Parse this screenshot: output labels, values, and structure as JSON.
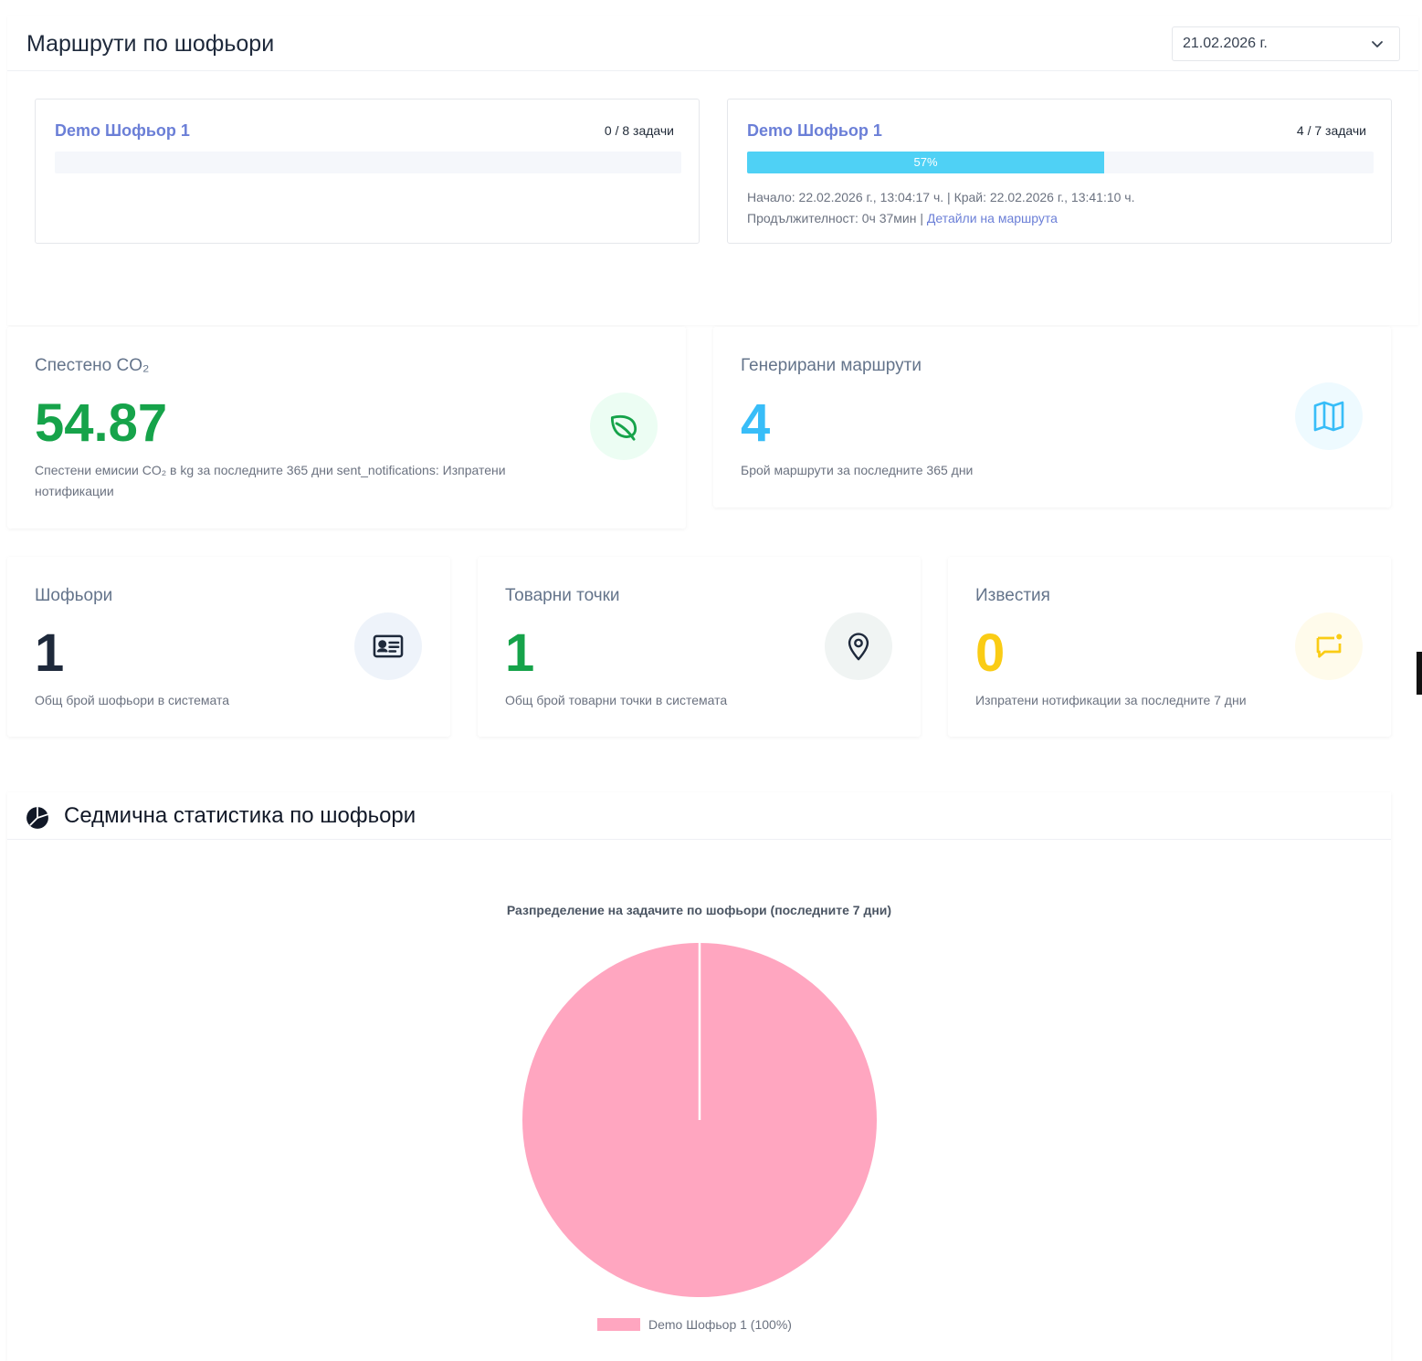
{
  "routes": {
    "title": "Маршрути по шофьори",
    "date_value": "21.02.2026 г.",
    "cards": [
      {
        "driver": "Demo Шофьор 1",
        "tasks": "0 / 8 задачи",
        "progress": 0
      },
      {
        "driver": "Demo Шофьор 1",
        "tasks": "4 / 7 задачи",
        "progress": 0.57,
        "progress_label": "57%",
        "meta_line1": "Начало: 22.02.2026 г., 13:04:17 ч. | Край: 22.02.2026 г., 13:41:10 ч.",
        "meta_line2": "Продължителност: 0ч 37мин |",
        "details_link": "Детайли на маршрута"
      }
    ]
  },
  "stats": {
    "co2": {
      "title": "Спестено CO₂",
      "value": "54.87",
      "desc_line1": "Спестени емисии CO₂ в kg за последните 365 дни sent_notifications: Изпратени",
      "desc_line2": "нотификации",
      "icon": "leaf-icon",
      "color": "#16a34a"
    },
    "routes_generated": {
      "title": "Генерирани маршрути",
      "value": "4",
      "desc": "Брой маршрути за последните 365 дни",
      "icon": "map-icon",
      "color": "#38bdf8"
    },
    "drivers": {
      "title": "Шофьори",
      "value": "1",
      "desc": "Общ брой шофьори в системата",
      "icon": "id-card-icon",
      "color": "#1e293b"
    },
    "points": {
      "title": "Товарни точки",
      "value": "1",
      "desc": "Общ брой товарни точки в системата",
      "icon": "location-pin-icon",
      "color": "#16a34a"
    },
    "notifications": {
      "title": "Известия",
      "value": "0",
      "desc": "Изпратени нотификации за последните 7 дни",
      "icon": "message-icon",
      "color": "#facc15"
    }
  },
  "weekly": {
    "title": "Седмична статистика по шофьори",
    "icon": "pie-chart-icon"
  },
  "chart_data": {
    "type": "pie",
    "title": "Разпределение на задачите по шофьори (последните 7 дни)",
    "categories": [
      "Demo Шофьор 1"
    ],
    "values": [
      100
    ],
    "legend_labels": [
      "Demo Шофьор 1 (100%)"
    ],
    "colors": [
      "#ffa6c0"
    ],
    "legend": "bottom"
  }
}
